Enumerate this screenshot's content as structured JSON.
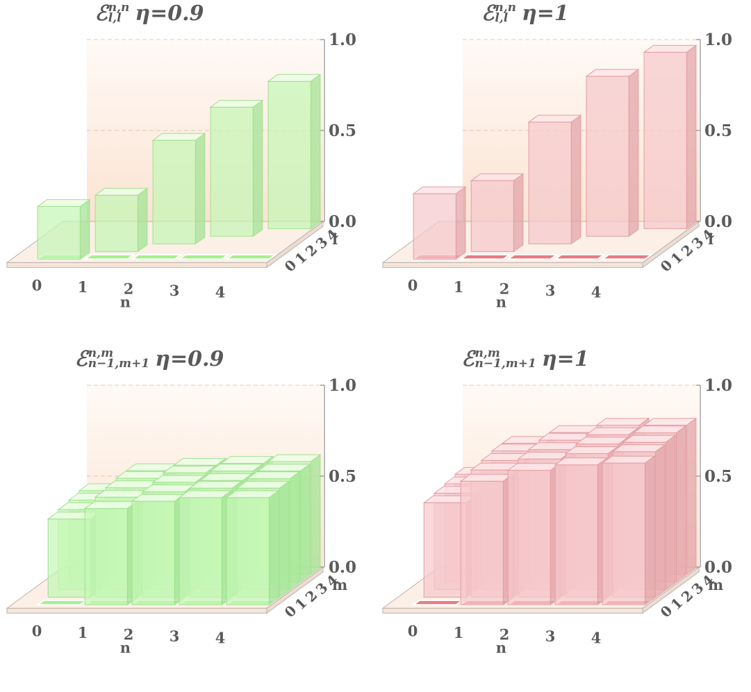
{
  "panels": [
    {
      "title": {
        "symbol": "ℰ",
        "sup": "n,n",
        "sub": "l,l",
        "eta": "η=0.9"
      },
      "theme": "green",
      "ylabel": "l",
      "xlabel": "n",
      "chart_data": {
        "type": "bar3d",
        "x_categories": [
          "0",
          "1",
          "2",
          "3",
          "4"
        ],
        "y_categories": [
          "0",
          "1",
          "2",
          "3",
          "4"
        ],
        "zlim": [
          0,
          1.0
        ],
        "z_ticks": [
          "0.0",
          "0.5",
          "1.0"
        ],
        "values": [
          [
            0.29,
            0.0,
            0.0,
            0.0,
            0.0
          ],
          [
            0.0,
            0.31,
            0.0,
            0.0,
            0.0
          ],
          [
            0.0,
            0.0,
            0.57,
            0.0,
            0.0
          ],
          [
            0.0,
            0.0,
            0.0,
            0.71,
            0.0
          ],
          [
            0.0,
            0.0,
            0.0,
            0.0,
            0.81
          ]
        ]
      }
    },
    {
      "title": {
        "symbol": "ℰ",
        "sup": "n,n",
        "sub": "l,l",
        "eta": "η=1"
      },
      "theme": "red",
      "ylabel": "l",
      "xlabel": "n",
      "chart_data": {
        "type": "bar3d",
        "x_categories": [
          "0",
          "1",
          "2",
          "3",
          "4"
        ],
        "y_categories": [
          "0",
          "1",
          "2",
          "3",
          "4"
        ],
        "zlim": [
          0,
          1.0
        ],
        "z_ticks": [
          "0.0",
          "0.5",
          "1.0"
        ],
        "values": [
          [
            0.36,
            0.0,
            0.0,
            0.0,
            0.0
          ],
          [
            0.0,
            0.39,
            0.0,
            0.0,
            0.0
          ],
          [
            0.0,
            0.0,
            0.67,
            0.0,
            0.0
          ],
          [
            0.0,
            0.0,
            0.0,
            0.88,
            0.0
          ],
          [
            0.0,
            0.0,
            0.0,
            0.0,
            0.97
          ]
        ]
      }
    },
    {
      "title": {
        "symbol": "ℰ",
        "sup": "n,m",
        "sub": "n−1,m+1",
        "eta": "η=0.9"
      },
      "theme": "green",
      "ylabel": "m",
      "xlabel": "n",
      "chart_data": {
        "type": "bar3d",
        "x_categories": [
          "0",
          "1",
          "2",
          "3",
          "4"
        ],
        "y_categories": [
          "0",
          "1",
          "2",
          "3",
          "4"
        ],
        "zlim": [
          0,
          1.0
        ],
        "z_ticks": [
          "0.0",
          "0.5",
          "1.0"
        ],
        "values": [
          [
            0.0,
            0.53,
            0.57,
            0.59,
            0.59
          ],
          [
            0.43,
            0.55,
            0.58,
            0.6,
            0.6
          ],
          [
            0.44,
            0.56,
            0.59,
            0.6,
            0.61
          ],
          [
            0.45,
            0.57,
            0.6,
            0.61,
            0.61
          ],
          [
            0.46,
            0.57,
            0.6,
            0.61,
            0.62
          ]
        ]
      }
    },
    {
      "title": {
        "symbol": "ℰ",
        "sup": "n,m",
        "sub": "n−1,m+1",
        "eta": "η=1"
      },
      "theme": "red",
      "ylabel": "m",
      "xlabel": "n",
      "chart_data": {
        "type": "bar3d",
        "x_categories": [
          "0",
          "1",
          "2",
          "3",
          "4"
        ],
        "y_categories": [
          "0",
          "1",
          "2",
          "3",
          "4"
        ],
        "zlim": [
          0,
          1.0
        ],
        "z_ticks": [
          "0.0",
          "0.5",
          "1.0"
        ],
        "values": [
          [
            0.0,
            0.68,
            0.74,
            0.77,
            0.78
          ],
          [
            0.52,
            0.7,
            0.76,
            0.79,
            0.8
          ],
          [
            0.53,
            0.71,
            0.77,
            0.8,
            0.81
          ],
          [
            0.54,
            0.72,
            0.78,
            0.81,
            0.82
          ],
          [
            0.55,
            0.72,
            0.78,
            0.82,
            0.82
          ]
        ]
      }
    }
  ]
}
